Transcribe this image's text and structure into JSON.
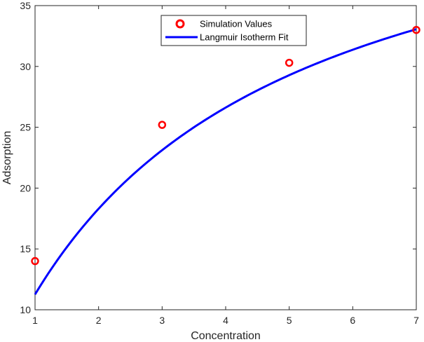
{
  "chart_data": {
    "type": "scatter",
    "title": "",
    "xlabel": "Concentration",
    "ylabel": "Adsorption",
    "xlim": [
      1,
      7
    ],
    "ylim": [
      10,
      35
    ],
    "x_ticks": [
      1,
      2,
      3,
      4,
      5,
      6,
      7
    ],
    "y_ticks": [
      10,
      15,
      20,
      25,
      30,
      35
    ],
    "grid": false,
    "legend_position": "top-center",
    "series": [
      {
        "name": "Simulation Values",
        "kind": "markers",
        "marker": "circle",
        "color": "#ff0000",
        "x": [
          1,
          3,
          5,
          7
        ],
        "y": [
          14.0,
          25.2,
          30.3,
          33.0
        ]
      },
      {
        "name": "Langmuir Isotherm Fit",
        "kind": "line",
        "color": "#0000ff",
        "model": "langmuir",
        "qmax": 48.8,
        "K": 0.3,
        "x_range": [
          1,
          7
        ]
      }
    ]
  }
}
